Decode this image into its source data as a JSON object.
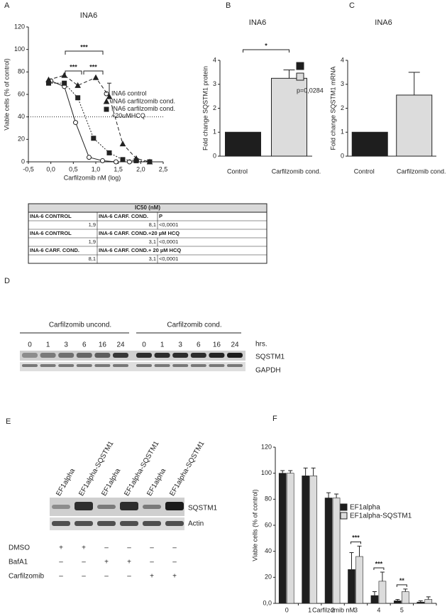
{
  "panel_labels": [
    "A",
    "B",
    "C",
    "D",
    "E",
    "F"
  ],
  "chart_data": [
    {
      "type": "line",
      "title": "INA6",
      "x_label": "Carfilzomib nM (log)",
      "y_label": "Viable cells (% of control)",
      "xlim": [
        -0.5,
        2.5
      ],
      "xticks": [
        {
          "value": -0.5,
          "label": "-0,5"
        },
        {
          "value": 0,
          "label": "0,0"
        },
        {
          "value": 0.5,
          "label": "0,5"
        },
        {
          "value": 1,
          "label": "1,0"
        },
        {
          "value": 1.5,
          "label": "1,5"
        },
        {
          "value": 2,
          "label": "2,0"
        },
        {
          "value": 2.5,
          "label": "2,5"
        }
      ],
      "ylim": [
        0,
        120
      ],
      "yticks": [
        0,
        20,
        40,
        60,
        80,
        100,
        120
      ],
      "reference_line": 40,
      "annotations": [
        "***",
        "***",
        "***"
      ],
      "series": [
        {
          "name": "INA6 control",
          "marker": "circle",
          "dash": "none",
          "color": "#222222",
          "x": [
            0,
            0.3,
            0.55,
            0.85,
            1.15,
            1.45,
            1.75
          ],
          "values": [
            72,
            67,
            35,
            4,
            1,
            0,
            0
          ]
        },
        {
          "name": "INA6 carfilzomib cond.",
          "marker": "triangle",
          "dash": "5,3",
          "color": "#222222",
          "x": [
            -0.05,
            0.3,
            0.6,
            1.0,
            1.3,
            1.6,
            1.9,
            2.2
          ],
          "values": [
            73,
            77,
            68,
            75,
            58,
            16,
            3,
            0
          ],
          "errors": [
            null,
            null,
            null,
            null,
            12,
            null,
            null,
            null
          ]
        },
        {
          "name": "INA6 carfilzomib cond.\n+20uMHCQ",
          "marker": "square",
          "dash": "2,2",
          "color": "#222222",
          "x": [
            -0.05,
            0.3,
            0.6,
            0.95,
            1.3,
            1.6,
            1.9,
            2.2
          ],
          "values": [
            70,
            70,
            57,
            21,
            8,
            2,
            1,
            0
          ]
        }
      ]
    },
    {
      "type": "bar",
      "title": "INA6",
      "y_label": "Fold change SQSTM1 protein",
      "categories": [
        "Control",
        "Carfilzomib cond."
      ],
      "values": [
        1,
        3.25
      ],
      "errors": [
        null,
        0.35
      ],
      "colors": [
        "#1e1e1e",
        "#dcdcdc"
      ],
      "ylim": [
        0,
        4
      ],
      "yticks": [
        0,
        1,
        2,
        3,
        4
      ],
      "annotations": [
        "*",
        "p=0,0284"
      ]
    },
    {
      "type": "bar",
      "title": "INA6",
      "y_label": "Fold change SQSTM1 mRNA",
      "categories": [
        "Control",
        "Carfilzomib cond."
      ],
      "values": [
        1,
        2.55
      ],
      "errors": [
        null,
        0.95
      ],
      "colors": [
        "#1e1e1e",
        "#dcdcdc"
      ],
      "ylim": [
        0,
        4
      ],
      "yticks": [
        0,
        1,
        2,
        3,
        4
      ]
    },
    {
      "type": "grouped_bar",
      "x_label": "Carfilzomib  nM",
      "y_label": "Viable cells (% of control)",
      "categories": [
        "0",
        "1",
        "2",
        "3",
        "4",
        "5",
        null
      ],
      "ylim": [
        0,
        120
      ],
      "yticks": [
        {
          "value": 0,
          "label": "0,0"
        },
        20,
        40,
        60,
        80,
        100,
        120
      ],
      "annotations": [
        "***",
        "***",
        "**"
      ],
      "series": [
        {
          "name": "EF1alpha",
          "color": "#1e1e1e",
          "values": [
            100,
            98,
            81,
            26,
            6,
            2,
            1
          ],
          "errors": [
            2,
            6,
            4,
            13,
            3,
            1,
            1
          ]
        },
        {
          "name": "EF1alpha-SQSTM1",
          "color": "#dcdcdc",
          "values": [
            100,
            98,
            81,
            36,
            17,
            9,
            3
          ],
          "errors": [
            2,
            6,
            3,
            8,
            7,
            2,
            2
          ]
        }
      ]
    }
  ],
  "table": {
    "title": "IC50 (nM)",
    "rows": [
      [
        "INA-6 CONTROL",
        "INA-6  CARF. COND.",
        "P"
      ],
      [
        "1,9",
        "8,1",
        "<0,0001"
      ],
      [
        "INA-6 CONTROL",
        "INA-6  CARF. COND.+20 µM HCQ"
      ],
      [
        "1,9",
        "3,1",
        "<0,0001"
      ],
      [
        "INA-6  CARF. COND.",
        "INA-6  CARF. COND.+ 20 µM HCQ"
      ],
      [
        "8,1",
        "3,1",
        "<0,0001"
      ]
    ]
  },
  "blot_d": {
    "groups": [
      "Carfilzomib uncond.",
      "Carfilzomib cond."
    ],
    "timepoints": [
      "0",
      "1",
      "3",
      "6",
      "16",
      "24",
      "0",
      "1",
      "3",
      "6",
      "16",
      "24"
    ],
    "time_unit": "hrs.",
    "rows": [
      "SQSTM1",
      "GAPDH"
    ]
  },
  "blot_e": {
    "lanes": [
      "EF1alpha",
      "EF1alpha-SQSTM1",
      "EF1alpha",
      "EF1alpha-SQSTM1",
      "EF1alpha",
      "EF1alpha-SQSTM1"
    ],
    "rows": [
      "SQSTM1",
      "Actin"
    ],
    "treatments": [
      {
        "name": "DMSO",
        "signs": [
          "+",
          "+",
          "–",
          "–",
          "–",
          "–"
        ]
      },
      {
        "name": "BafA1",
        "signs": [
          "–",
          "–",
          "+",
          "+",
          "–",
          "–"
        ]
      },
      {
        "name": "Carfilzomib",
        "signs": [
          "–",
          "–",
          "–",
          "–",
          "+",
          "+"
        ]
      }
    ]
  }
}
